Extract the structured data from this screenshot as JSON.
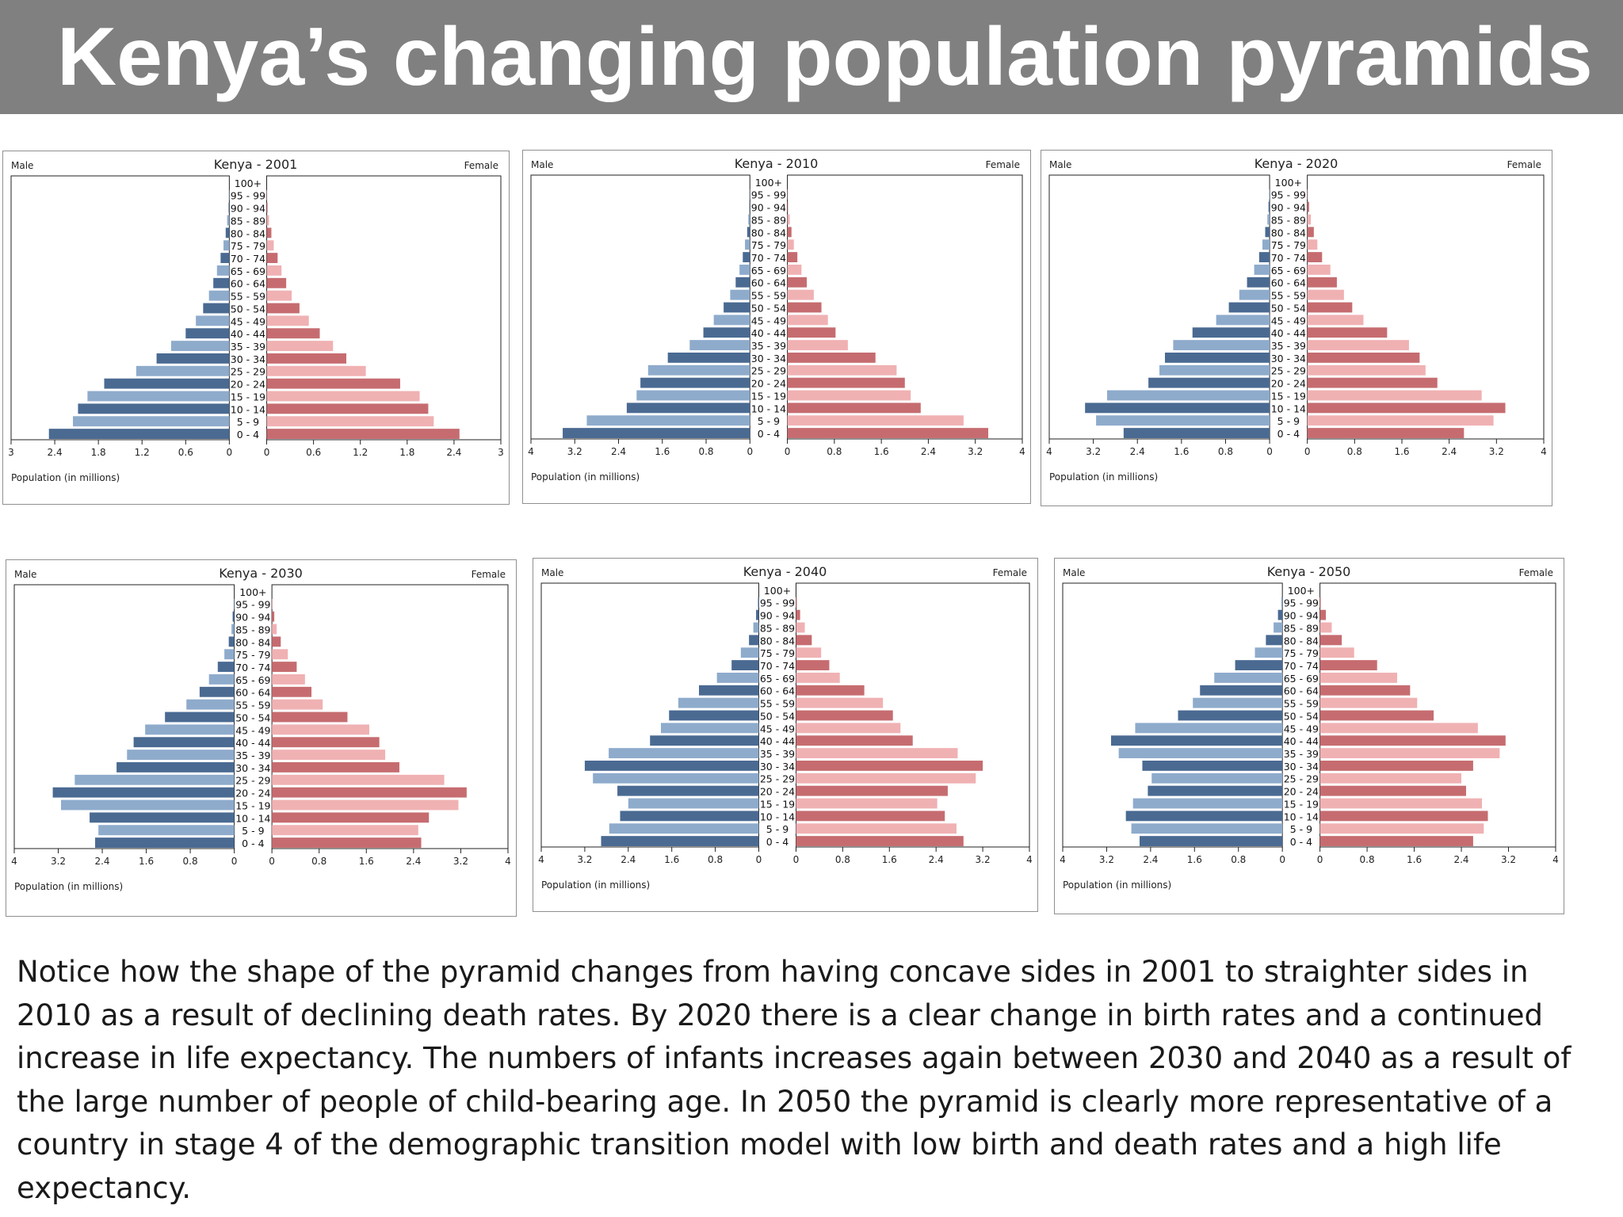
{
  "slide_title": "Kenya’s changing population pyramids",
  "caption": "Notice how the shape of the pyramid changes from having concave sides in 2001 to straighter sides in 2010 as a result of declining death rates. By 2020 there is a clear change in birth rates and a continued increase in life expectancy. The numbers of infants increases again between 2030 and 2040 as a result of the large number of people of child-bearing age. In 2050 the pyramid is clearly more representative of a country in stage 4 of the demographic transition model with low birth and death rates and a high life expectancy.",
  "colors": {
    "male_dark": "#4a6a92",
    "male_light": "#8eabcc",
    "female_dark": "#c66c70",
    "female_light": "#f0b1b3",
    "banner": "#808080"
  },
  "chart_data": [
    {
      "type": "bar",
      "title": "Kenya - 2001",
      "left_label": "Male",
      "right_label": "Female",
      "xlabel": "Population (in millions)",
      "xlim": [
        0,
        3
      ],
      "xticks": [
        "3",
        "2.4",
        "1.8",
        "1.2",
        "0.6",
        "0",
        "0",
        "0.6",
        "1.2",
        "1.8",
        "2.4",
        "3"
      ],
      "categories": [
        "100+",
        "95 - 99",
        "90 - 94",
        "85 - 89",
        "80 - 84",
        "75 - 79",
        "70 - 74",
        "65 - 69",
        "60 - 64",
        "55 - 59",
        "50 - 54",
        "45 - 49",
        "40 - 44",
        "35 - 39",
        "30 - 34",
        "25 - 29",
        "20 - 24",
        "15 - 19",
        "10 - 14",
        "5 - 9",
        "0 - 4"
      ],
      "series": [
        {
          "name": "Male",
          "values": [
            0,
            0.005,
            0.01,
            0.03,
            0.05,
            0.08,
            0.12,
            0.17,
            0.22,
            0.28,
            0.36,
            0.46,
            0.6,
            0.8,
            1.0,
            1.28,
            1.72,
            1.95,
            2.08,
            2.15,
            2.48
          ]
        },
        {
          "name": "Female",
          "values": [
            0,
            0.005,
            0.01,
            0.03,
            0.06,
            0.09,
            0.14,
            0.19,
            0.25,
            0.32,
            0.42,
            0.54,
            0.68,
            0.85,
            1.02,
            1.27,
            1.71,
            1.96,
            2.07,
            2.14,
            2.47
          ]
        }
      ]
    },
    {
      "type": "bar",
      "title": "Kenya - 2010",
      "left_label": "Male",
      "right_label": "Female",
      "xlabel": "Population (in millions)",
      "xlim": [
        0,
        4
      ],
      "xticks": [
        "4",
        "3.2",
        "2.4",
        "1.6",
        "0.8",
        "0",
        "0",
        "0.8",
        "1.6",
        "2.4",
        "3.2",
        "4"
      ],
      "categories": [
        "100+",
        "95 - 99",
        "90 - 94",
        "85 - 89",
        "80 - 84",
        "75 - 79",
        "70 - 74",
        "65 - 69",
        "60 - 64",
        "55 - 59",
        "50 - 54",
        "45 - 49",
        "40 - 44",
        "35 - 39",
        "30 - 34",
        "25 - 29",
        "20 - 24",
        "15 - 19",
        "10 - 14",
        "5 - 9",
        "0 - 4"
      ],
      "series": [
        {
          "name": "Male",
          "values": [
            0,
            0.005,
            0.01,
            0.03,
            0.05,
            0.09,
            0.13,
            0.19,
            0.26,
            0.36,
            0.48,
            0.66,
            0.85,
            1.1,
            1.5,
            1.86,
            2.0,
            2.07,
            2.25,
            2.98,
            3.42
          ]
        },
        {
          "name": "Female",
          "values": [
            0,
            0.005,
            0.01,
            0.04,
            0.07,
            0.11,
            0.17,
            0.24,
            0.33,
            0.45,
            0.58,
            0.69,
            0.82,
            1.03,
            1.5,
            1.86,
            2.0,
            2.1,
            2.27,
            3.0,
            3.42
          ]
        }
      ]
    },
    {
      "type": "bar",
      "title": "Kenya - 2020",
      "left_label": "Male",
      "right_label": "Female",
      "xlabel": "Population (in millions)",
      "xlim": [
        0,
        4
      ],
      "xticks": [
        "4",
        "3.2",
        "2.4",
        "1.6",
        "0.8",
        "0",
        "0",
        "0.8",
        "1.6",
        "2.4",
        "3.2",
        "4"
      ],
      "categories": [
        "100+",
        "95 - 99",
        "90 - 94",
        "85 - 89",
        "80 - 84",
        "75 - 79",
        "70 - 74",
        "65 - 69",
        "60 - 64",
        "55 - 59",
        "50 - 54",
        "45 - 49",
        "40 - 44",
        "35 - 39",
        "30 - 34",
        "25 - 29",
        "20 - 24",
        "15 - 19",
        "10 - 14",
        "5 - 9",
        "0 - 4"
      ],
      "series": [
        {
          "name": "Male",
          "values": [
            0,
            0.01,
            0.02,
            0.04,
            0.08,
            0.13,
            0.19,
            0.28,
            0.41,
            0.55,
            0.74,
            0.97,
            1.4,
            1.75,
            1.9,
            2.0,
            2.2,
            2.95,
            3.35,
            3.15,
            2.65
          ]
        },
        {
          "name": "Female",
          "values": [
            0,
            0.01,
            0.03,
            0.06,
            0.11,
            0.17,
            0.25,
            0.39,
            0.5,
            0.62,
            0.76,
            0.95,
            1.35,
            1.72,
            1.9,
            2.0,
            2.2,
            2.95,
            3.35,
            3.15,
            2.65
          ]
        }
      ]
    },
    {
      "type": "bar",
      "title": "Kenya - 2030",
      "left_label": "Male",
      "right_label": "Female",
      "xlabel": "Population (in millions)",
      "xlim": [
        0,
        4
      ],
      "xticks": [
        "4",
        "3.2",
        "2.4",
        "1.6",
        "0.8",
        "0",
        "0",
        "0.8",
        "1.6",
        "2.4",
        "3.2",
        "4"
      ],
      "categories": [
        "100+",
        "95 - 99",
        "90 - 94",
        "85 - 89",
        "80 - 84",
        "75 - 79",
        "70 - 74",
        "65 - 69",
        "60 - 64",
        "55 - 59",
        "50 - 54",
        "45 - 49",
        "40 - 44",
        "35 - 39",
        "30 - 34",
        "25 - 29",
        "20 - 24",
        "15 - 19",
        "10 - 14",
        "5 - 9",
        "0 - 4"
      ],
      "series": [
        {
          "name": "Male",
          "values": [
            0,
            0.01,
            0.03,
            0.05,
            0.1,
            0.18,
            0.3,
            0.46,
            0.63,
            0.87,
            1.26,
            1.62,
            1.83,
            1.95,
            2.14,
            2.9,
            3.3,
            3.15,
            2.63,
            2.47,
            2.53
          ]
        },
        {
          "name": "Female",
          "values": [
            0,
            0.01,
            0.04,
            0.08,
            0.15,
            0.27,
            0.42,
            0.56,
            0.67,
            0.86,
            1.28,
            1.65,
            1.82,
            1.92,
            2.16,
            2.92,
            3.3,
            3.16,
            2.66,
            2.48,
            2.53
          ]
        }
      ]
    },
    {
      "type": "bar",
      "title": "Kenya - 2040",
      "left_label": "Male",
      "right_label": "Female",
      "xlabel": "Population (in millions)",
      "xlim": [
        0,
        4
      ],
      "xticks": [
        "4",
        "3.2",
        "2.4",
        "1.6",
        "0.8",
        "0",
        "0",
        "0.8",
        "1.6",
        "2.4",
        "3.2",
        "4"
      ],
      "categories": [
        "100+",
        "95 - 99",
        "90 - 94",
        "85 - 89",
        "80 - 84",
        "75 - 79",
        "70 - 74",
        "65 - 69",
        "60 - 64",
        "55 - 59",
        "50 - 54",
        "45 - 49",
        "40 - 44",
        "35 - 39",
        "30 - 34",
        "25 - 29",
        "20 - 24",
        "15 - 19",
        "10 - 14",
        "5 - 9",
        "0 - 4"
      ],
      "series": [
        {
          "name": "Male",
          "values": [
            0,
            0.02,
            0.05,
            0.1,
            0.18,
            0.33,
            0.5,
            0.77,
            1.1,
            1.48,
            1.65,
            1.8,
            2.0,
            2.76,
            3.2,
            3.05,
            2.6,
            2.4,
            2.55,
            2.75,
            2.9
          ]
        },
        {
          "name": "Female",
          "values": [
            0,
            0.02,
            0.07,
            0.15,
            0.27,
            0.43,
            0.57,
            0.75,
            1.17,
            1.49,
            1.66,
            1.79,
            2.0,
            2.77,
            3.2,
            3.08,
            2.6,
            2.42,
            2.55,
            2.75,
            2.87
          ]
        }
      ]
    },
    {
      "type": "bar",
      "title": "Kenya - 2050",
      "left_label": "Male",
      "right_label": "Female",
      "xlabel": "Population (in millions)",
      "xlim": [
        0,
        4
      ],
      "xticks": [
        "4",
        "3.2",
        "2.4",
        "1.6",
        "0.8",
        "0",
        "0",
        "0.8",
        "1.6",
        "2.4",
        "3.2",
        "4"
      ],
      "categories": [
        "100+",
        "95 - 99",
        "90 - 94",
        "85 - 89",
        "80 - 84",
        "75 - 79",
        "70 - 74",
        "65 - 69",
        "60 - 64",
        "55 - 59",
        "50 - 54",
        "45 - 49",
        "40 - 44",
        "35 - 39",
        "30 - 34",
        "25 - 29",
        "20 - 24",
        "15 - 19",
        "10 - 14",
        "5 - 9",
        "0 - 4"
      ],
      "series": [
        {
          "name": "Male",
          "values": [
            0,
            0.02,
            0.08,
            0.16,
            0.3,
            0.5,
            0.86,
            1.24,
            1.5,
            1.63,
            1.9,
            2.68,
            3.12,
            2.98,
            2.55,
            2.38,
            2.45,
            2.72,
            2.85,
            2.75,
            2.6
          ]
        },
        {
          "name": "Female",
          "values": [
            0,
            0.02,
            0.1,
            0.2,
            0.37,
            0.58,
            0.97,
            1.31,
            1.53,
            1.65,
            1.93,
            2.68,
            3.15,
            3.05,
            2.6,
            2.4,
            2.48,
            2.75,
            2.85,
            2.78,
            2.6
          ]
        }
      ]
    }
  ]
}
